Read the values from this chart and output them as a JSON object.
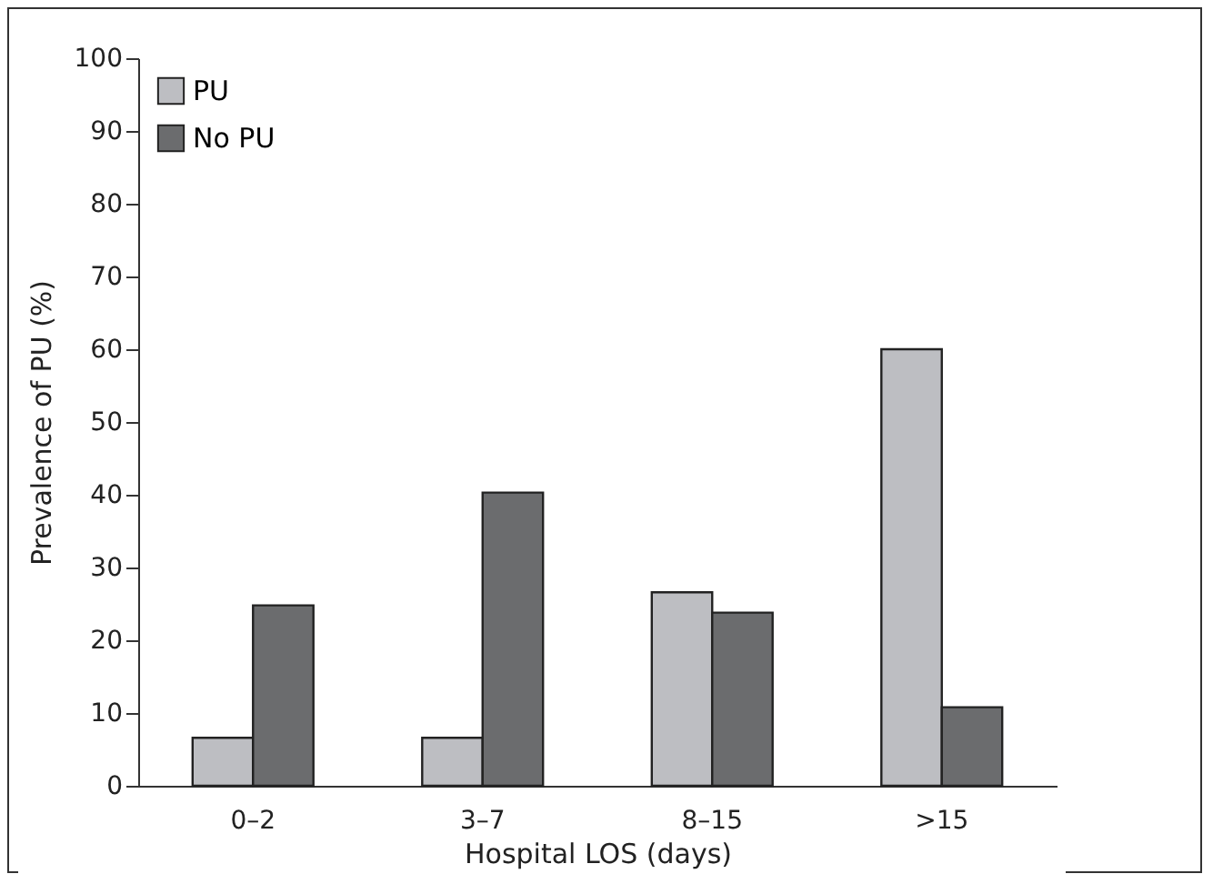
{
  "chart_data": {
    "type": "bar",
    "xlabel": "Hospital LOS (days)",
    "ylabel": "Prevalence of PU (%)",
    "categories": [
      "0–2",
      "3–7",
      "8–15",
      ">15"
    ],
    "series": [
      {
        "name": "PU",
        "color": "#bdbec2",
        "values": [
          6.6,
          6.6,
          26.6,
          60
        ]
      },
      {
        "name": "No PU",
        "color": "#6b6c6e",
        "values": [
          24.8,
          40.3,
          23.8,
          10.8
        ]
      }
    ],
    "ylim": [
      0,
      100
    ],
    "yticks": [
      0,
      10,
      20,
      30,
      40,
      50,
      60,
      70,
      80,
      90,
      100
    ],
    "grid": false,
    "legend": "top left"
  }
}
